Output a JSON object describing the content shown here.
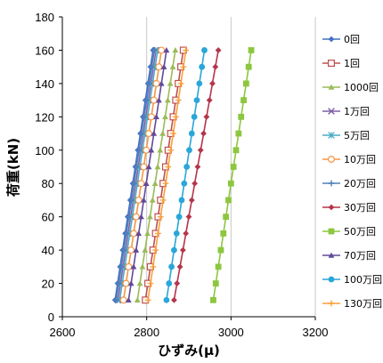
{
  "chart_data": {
    "type": "line",
    "xlabel": "ひずみ(μ)",
    "ylabel": "荷重(kN)",
    "xlim": [
      2600,
      3200
    ],
    "ylim": [
      0,
      180
    ],
    "xticks": [
      2600,
      2800,
      3000,
      3200
    ],
    "yticks": [
      0,
      20,
      40,
      60,
      80,
      100,
      120,
      140,
      160,
      180
    ],
    "grid": "vertical",
    "legend_position": "right",
    "y": [
      10,
      20,
      30,
      40,
      50,
      60,
      70,
      80,
      90,
      100,
      110,
      120,
      130,
      140,
      150,
      160
    ],
    "series": [
      {
        "name": "0回",
        "color": "#4472C4",
        "marker": "diamond",
        "x": [
          2725,
          2731,
          2737,
          2743,
          2749,
          2755,
          2761,
          2767,
          2773,
          2779,
          2785,
          2791,
          2797,
          2803,
          2809,
          2815
        ]
      },
      {
        "name": "1回",
        "color": "#C0504D",
        "marker": "square-open",
        "x": [
          2797,
          2803,
          2809,
          2815,
          2821,
          2827,
          2833,
          2839,
          2845,
          2851,
          2857,
          2863,
          2869,
          2875,
          2881,
          2887
        ]
      },
      {
        "name": "1000回",
        "color": "#9BBB59",
        "marker": "triangle",
        "x": [
          2778,
          2784,
          2790,
          2796,
          2802,
          2808,
          2814,
          2820,
          2826,
          2832,
          2838,
          2844,
          2850,
          2856,
          2862,
          2868
        ]
      },
      {
        "name": "1万回",
        "color": "#7F60A8",
        "marker": "x",
        "x": [
          2732,
          2738,
          2744,
          2750,
          2756,
          2762,
          2768,
          2774,
          2780,
          2786,
          2792,
          2798,
          2804,
          2810,
          2816,
          2822
        ]
      },
      {
        "name": "5万回",
        "color": "#4BACC6",
        "marker": "asterisk",
        "x": [
          2736,
          2742,
          2748,
          2754,
          2760,
          2766,
          2772,
          2778,
          2784,
          2790,
          2796,
          2802,
          2808,
          2814,
          2820,
          2826
        ]
      },
      {
        "name": "10万回",
        "color": "#F79646",
        "marker": "circle-open",
        "x": [
          2745,
          2751,
          2757,
          2763,
          2769,
          2775,
          2781,
          2787,
          2793,
          2799,
          2805,
          2811,
          2817,
          2823,
          2829,
          2835
        ]
      },
      {
        "name": "20万回",
        "color": "#4F81BD",
        "marker": "plus",
        "x": [
          2728,
          2734,
          2740,
          2746,
          2752,
          2758,
          2764,
          2770,
          2776,
          2782,
          2788,
          2794,
          2800,
          2806,
          2812,
          2818
        ]
      },
      {
        "name": "30万回",
        "color": "#B5354A",
        "marker": "diamond",
        "x": [
          2865,
          2872,
          2879,
          2886,
          2893,
          2900,
          2907,
          2914,
          2921,
          2928,
          2935,
          2942,
          2949,
          2956,
          2963,
          2970
        ]
      },
      {
        "name": "50万回",
        "color": "#8DC63F",
        "marker": "square",
        "x": [
          2958,
          2964,
          2970,
          2976,
          2982,
          2988,
          2994,
          3000,
          3006,
          3012,
          3018,
          3024,
          3030,
          3036,
          3042,
          3048
        ]
      },
      {
        "name": "70万回",
        "color": "#604A9B",
        "marker": "triangle",
        "x": [
          2757,
          2763,
          2769,
          2775,
          2781,
          2787,
          2793,
          2799,
          2805,
          2811,
          2817,
          2823,
          2829,
          2835,
          2841,
          2847
        ]
      },
      {
        "name": "100万回",
        "color": "#2AA6D9",
        "marker": "circle",
        "x": [
          2847,
          2853,
          2859,
          2865,
          2871,
          2877,
          2883,
          2889,
          2895,
          2901,
          2907,
          2913,
          2919,
          2925,
          2931,
          2937
        ]
      },
      {
        "name": "130万回",
        "color": "#F9A13A",
        "marker": "plus",
        "x": [
          2803,
          2809,
          2815,
          2821,
          2827,
          2833,
          2839,
          2845,
          2851,
          2857,
          2863,
          2869,
          2875,
          2881,
          2887,
          2893
        ]
      }
    ]
  }
}
